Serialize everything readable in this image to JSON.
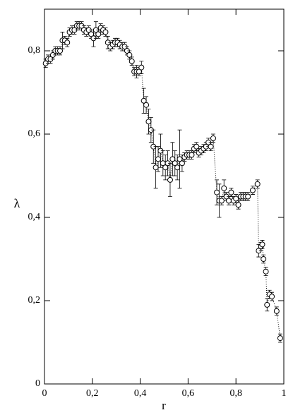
{
  "chart_data": {
    "type": "scatter",
    "x_label": "r",
    "y_label": "λ",
    "xlim": [
      0,
      1
    ],
    "ylim": [
      0,
      0.9
    ],
    "xticks": [
      0,
      {
        "value": 0.2,
        "label": "0,2"
      },
      {
        "value": 0.4,
        "label": "0,4"
      },
      {
        "value": 0.6,
        "label": "0,6"
      },
      {
        "value": 0.8,
        "label": "0,8"
      },
      1
    ],
    "yticks": [
      0,
      {
        "value": 0.2,
        "label": "0,2"
      },
      {
        "value": 0.4,
        "label": "0,4"
      },
      {
        "value": 0.6,
        "label": "0,6"
      },
      {
        "value": 0.8,
        "label": "0,8"
      }
    ],
    "color": "#000000",
    "x": [
      0.005,
      0.015,
      0.025,
      0.035,
      0.045,
      0.055,
      0.065,
      0.075,
      0.085,
      0.095,
      0.105,
      0.115,
      0.125,
      0.135,
      0.145,
      0.155,
      0.165,
      0.175,
      0.185,
      0.195,
      0.205,
      0.215,
      0.225,
      0.235,
      0.245,
      0.255,
      0.265,
      0.275,
      0.285,
      0.295,
      0.305,
      0.315,
      0.325,
      0.335,
      0.345,
      0.355,
      0.365,
      0.375,
      0.385,
      0.395,
      0.405,
      0.415,
      0.425,
      0.435,
      0.445,
      0.455,
      0.465,
      0.475,
      0.485,
      0.495,
      0.505,
      0.515,
      0.525,
      0.535,
      0.545,
      0.555,
      0.565,
      0.575,
      0.585,
      0.595,
      0.605,
      0.615,
      0.625,
      0.635,
      0.645,
      0.655,
      0.665,
      0.675,
      0.685,
      0.695,
      0.705,
      0.72,
      0.73,
      0.74,
      0.75,
      0.76,
      0.77,
      0.78,
      0.79,
      0.8,
      0.81,
      0.82,
      0.83,
      0.84,
      0.85,
      0.87,
      0.89,
      0.895,
      0.905,
      0.91,
      0.915,
      0.925,
      0.93,
      0.94,
      0.95,
      0.97,
      0.985
    ],
    "values": [
      0.77,
      0.78,
      0.78,
      0.79,
      0.8,
      0.8,
      0.8,
      0.825,
      0.825,
      0.82,
      0.845,
      0.85,
      0.85,
      0.86,
      0.86,
      0.86,
      0.85,
      0.845,
      0.85,
      0.84,
      0.83,
      0.85,
      0.84,
      0.855,
      0.85,
      0.845,
      0.82,
      0.81,
      0.815,
      0.82,
      0.82,
      0.815,
      0.81,
      0.81,
      0.8,
      0.79,
      0.775,
      0.75,
      0.75,
      0.75,
      0.76,
      0.68,
      0.67,
      0.63,
      0.61,
      0.57,
      0.52,
      0.54,
      0.56,
      0.53,
      0.52,
      0.53,
      0.49,
      0.54,
      0.53,
      0.52,
      0.54,
      0.53,
      0.545,
      0.55,
      0.55,
      0.55,
      0.565,
      0.57,
      0.555,
      0.56,
      0.565,
      0.57,
      0.58,
      0.57,
      0.59,
      0.46,
      0.44,
      0.44,
      0.47,
      0.45,
      0.44,
      0.46,
      0.44,
      0.445,
      0.43,
      0.45,
      0.45,
      0.45,
      0.45,
      0.465,
      0.48,
      0.32,
      0.33,
      0.335,
      0.3,
      0.27,
      0.19,
      0.215,
      0.21,
      0.175,
      0.11
    ],
    "errors": [
      0.01,
      0.01,
      0.01,
      0.01,
      0.01,
      0.01,
      0.01,
      0.02,
      0.01,
      0.01,
      0.01,
      0.01,
      0.01,
      0.01,
      0.01,
      0.01,
      0.01,
      0.01,
      0.01,
      0.01,
      0.02,
      0.02,
      0.01,
      0.01,
      0.01,
      0.01,
      0.015,
      0.01,
      0.01,
      0.01,
      0.01,
      0.01,
      0.01,
      0.01,
      0.01,
      0.01,
      0.01,
      0.01,
      0.015,
      0.01,
      0.015,
      0.03,
      0.02,
      0.03,
      0.03,
      0.04,
      0.05,
      0.03,
      0.04,
      0.03,
      0.03,
      0.03,
      0.04,
      0.04,
      0.03,
      0.03,
      0.07,
      0.02,
      0.01,
      0.01,
      0.01,
      0.01,
      0.01,
      0.01,
      0.01,
      0.01,
      0.01,
      0.01,
      0.01,
      0.01,
      0.01,
      0.03,
      0.04,
      0.01,
      0.02,
      0.01,
      0.01,
      0.01,
      0.01,
      0.01,
      0.01,
      0.01,
      0.01,
      0.01,
      0.01,
      0.01,
      0.01,
      0.015,
      0.01,
      0.01,
      0.01,
      0.01,
      0.015,
      0.01,
      0.01,
      0.01,
      0.01
    ]
  }
}
